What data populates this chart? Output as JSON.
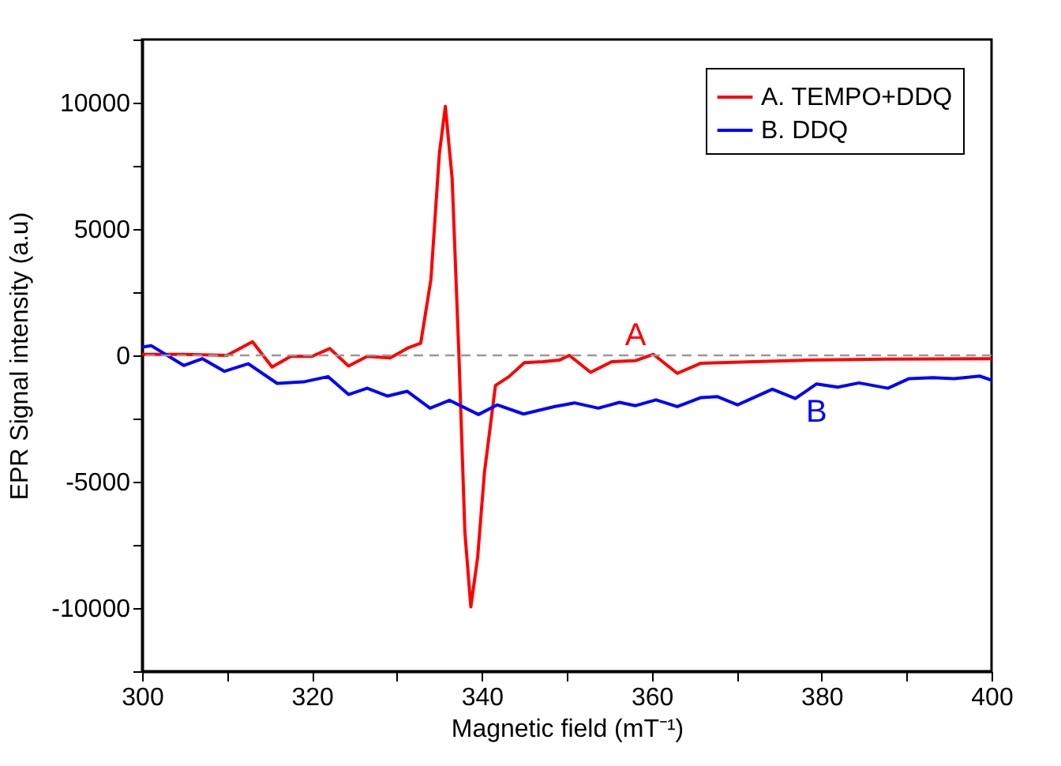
{
  "chart_data": {
    "type": "line",
    "xlabel": "Magnetic field (mT⁻¹)",
    "ylabel": "EPR Signal intensity (a.u)",
    "xlim": [
      300,
      400
    ],
    "ylim": [
      -12500,
      12500
    ],
    "xticks": [
      300,
      {
        "value": 310,
        "label": null
      },
      320,
      {
        "value": 330,
        "label": null
      },
      340,
      {
        "value": 350,
        "label": null
      },
      360,
      {
        "value": 370,
        "label": null
      },
      380,
      {
        "value": 390,
        "label": null
      },
      400
    ],
    "yticks": [
      {
        "value": -12500,
        "label": null
      },
      -10000,
      {
        "value": -7500,
        "label": null
      },
      -5000,
      {
        "value": -2500,
        "label": null
      },
      0,
      {
        "value": 2500,
        "label": null
      },
      5000,
      {
        "value": 7500,
        "label": null
      },
      10000,
      {
        "value": 12500,
        "label": null
      }
    ],
    "legend": "top right",
    "grid": false,
    "marker": "none",
    "line_style": "solid",
    "series": [
      {
        "name": "A. TEMPO+DDQ",
        "color": "#ff0000",
        "x": [
          300,
          305,
          310,
          313.0,
          315.3,
          317.5,
          320,
          322.1,
          324.3,
          326.5,
          329.2,
          331.4,
          332.8,
          334,
          335,
          335.7,
          336.5,
          337.3,
          338,
          338.7,
          339.5,
          340.3,
          341.6,
          343.2,
          345.0,
          347.2,
          349.1,
          350.3,
          352.8,
          355.3,
          358.1,
          360.2,
          363.0,
          365.8,
          372.0,
          378.2,
          387.5,
          399.8,
          400
        ],
        "values": [
          40,
          40,
          0,
          540,
          -460,
          -40,
          -40,
          270,
          -420,
          -40,
          -100,
          310,
          480,
          3000,
          8000,
          9850,
          7000,
          0,
          -7000,
          -9950,
          -8000,
          -4640,
          -1190,
          -840,
          -290,
          -250,
          -190,
          0,
          -670,
          -250,
          -210,
          40,
          -710,
          -310,
          -250,
          -190,
          -150,
          -130,
          -130
        ]
      },
      {
        "name": "B. DDQ",
        "color": "#0000ff",
        "x": [
          300,
          301.1,
          304.9,
          307.1,
          309.7,
          312.5,
          315.9,
          319.0,
          321.9,
          324.3,
          326.5,
          328.9,
          331.2,
          333.9,
          336.2,
          339.6,
          341.8,
          344.9,
          348.5,
          350.9,
          353.7,
          356.2,
          358.1,
          360.5,
          363.0,
          365.8,
          367.7,
          370.1,
          374.2,
          376.9,
          379.4,
          381.9,
          384.4,
          387.8,
          390.3,
          393.1,
          395.6,
          398.6,
          400
        ],
        "values": [
          330,
          380,
          -400,
          -130,
          -630,
          -330,
          -1110,
          -1050,
          -840,
          -1550,
          -1300,
          -1610,
          -1420,
          -2090,
          -1780,
          -2340,
          -1960,
          -2320,
          -2030,
          -1880,
          -2090,
          -1860,
          -1990,
          -1760,
          -2030,
          -1670,
          -1630,
          -1960,
          -1340,
          -1710,
          -1130,
          -1260,
          -1090,
          -1300,
          -920,
          -880,
          -920,
          -820,
          -980
        ]
      }
    ],
    "ref_lines": [
      {
        "axis": "y",
        "value": 0,
        "color": "#999999",
        "line_style": "dashed"
      }
    ],
    "annotations": [
      "A",
      "B"
    ]
  }
}
